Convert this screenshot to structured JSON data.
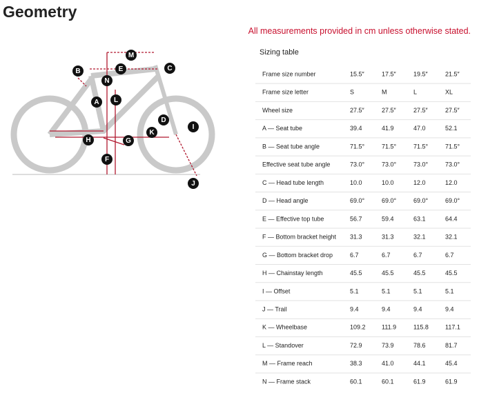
{
  "title": "Geometry",
  "note": "All measurements provided in cm unless otherwise stated.",
  "diagram": {
    "labels": [
      "M",
      "E",
      "C",
      "B",
      "N",
      "A",
      "L",
      "D",
      "I",
      "K",
      "H",
      "G",
      "F",
      "J"
    ]
  },
  "table": {
    "caption": "Sizing table",
    "rows": [
      [
        "Frame size number",
        "15.5″",
        "17.5″",
        "19.5″",
        "21.5″"
      ],
      [
        "Frame size letter",
        "S",
        "M",
        "L",
        "XL"
      ],
      [
        "Wheel size",
        "27.5″",
        "27.5″",
        "27.5″",
        "27.5″"
      ],
      [
        "A — Seat tube",
        "39.4",
        "41.9",
        "47.0",
        "52.1"
      ],
      [
        "B — Seat tube angle",
        "71.5°",
        "71.5°",
        "71.5°",
        "71.5°"
      ],
      [
        "Effective seat tube angle",
        "73.0°",
        "73.0°",
        "73.0°",
        "73.0°"
      ],
      [
        "C — Head tube length",
        "10.0",
        "10.0",
        "12.0",
        "12.0"
      ],
      [
        "D — Head angle",
        "69.0°",
        "69.0°",
        "69.0°",
        "69.0°"
      ],
      [
        "E — Effective top tube",
        "56.7",
        "59.4",
        "63.1",
        "64.4"
      ],
      [
        "F — Bottom bracket height",
        "31.3",
        "31.3",
        "32.1",
        "32.1"
      ],
      [
        "G — Bottom bracket drop",
        "6.7",
        "6.7",
        "6.7",
        "6.7"
      ],
      [
        "H — Chainstay length",
        "45.5",
        "45.5",
        "45.5",
        "45.5"
      ],
      [
        "I — Offset",
        "5.1",
        "5.1",
        "5.1",
        "5.1"
      ],
      [
        "J — Trail",
        "9.4",
        "9.4",
        "9.4",
        "9.4"
      ],
      [
        "K — Wheelbase",
        "109.2",
        "111.9",
        "115.8",
        "117.1"
      ],
      [
        "L — Standover",
        "72.9",
        "73.9",
        "78.6",
        "81.7"
      ],
      [
        "M — Frame reach",
        "38.3",
        "41.0",
        "44.1",
        "45.4"
      ],
      [
        "N — Frame stack",
        "60.1",
        "60.1",
        "61.9",
        "61.9"
      ]
    ]
  }
}
